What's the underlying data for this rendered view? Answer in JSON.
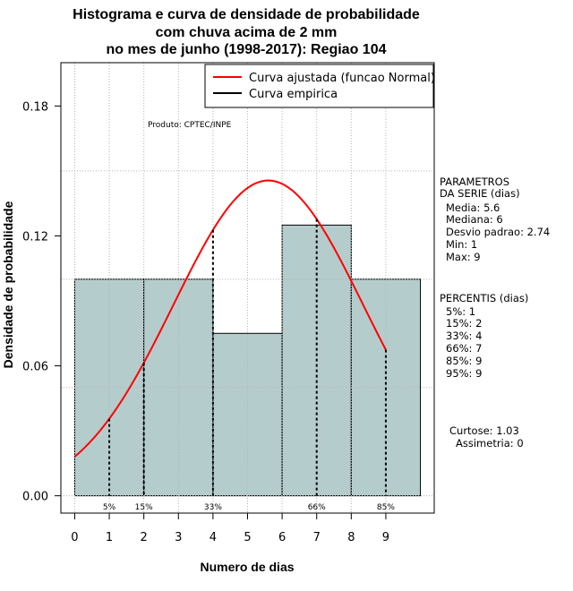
{
  "chart_data": {
    "type": "bar",
    "title": [
      "Histograma e curva de densidade de probabilidade",
      "com chuva acima de 2 mm",
      "no mes de junho (1998-2017): Regiao 104"
    ],
    "xlabel": "Numero de dias",
    "ylabel": "Densidade de probabilidade",
    "xlim": [
      -0.4,
      10.4
    ],
    "ylim": [
      -0.008,
      0.2
    ],
    "x_ticks": [
      0,
      1,
      2,
      3,
      4,
      5,
      6,
      7,
      8,
      9
    ],
    "y_ticks": [
      0.0,
      0.06,
      0.12,
      0.18
    ],
    "y_tick_labels": [
      "0.00",
      "0.06",
      "0.12",
      "0.18"
    ],
    "bins": [
      {
        "from": 0,
        "to": 2,
        "density": 0.1
      },
      {
        "from": 2,
        "to": 4,
        "density": 0.1
      },
      {
        "from": 4,
        "to": 6,
        "density": 0.075
      },
      {
        "from": 6,
        "to": 8,
        "density": 0.125
      },
      {
        "from": 8,
        "to": 10,
        "density": 0.1
      }
    ],
    "normal_curve": {
      "mean": 5.6,
      "sd": 2.74,
      "x_range": [
        0,
        9
      ]
    },
    "percentile_lines": [
      {
        "x": 1,
        "label": "5%"
      },
      {
        "x": 2,
        "label": "15%"
      },
      {
        "x": 4,
        "label": "33%"
      },
      {
        "x": 7,
        "label": "66%"
      },
      {
        "x": 9,
        "label": "85%"
      }
    ],
    "legend": [
      {
        "label": "Curva ajustada (funcao Normal)",
        "color": "#ff0000"
      },
      {
        "label": "Curva empirica",
        "color": "#000000"
      }
    ],
    "source_note": "Produto: CPTEC/INPE",
    "parameters_block": [
      "PARAMETROS",
      "DA SERIE (dias)",
      "Media: 5.6",
      "Mediana: 6",
      "Desvio padrao: 2.74",
      "Min: 1",
      "Max: 9"
    ],
    "percentiles_block": [
      "PERCENTIS (dias)",
      "5%: 1",
      "15%: 2",
      "33%: 4",
      "66%: 7",
      "85%: 9",
      "95%: 9"
    ],
    "shape_block": [
      "Curtose: 1.03",
      "Assimetria: 0"
    ]
  },
  "colors": {
    "bar_fill": "#b5cccc",
    "bar_stroke": "#000000",
    "curve": "#ff0000",
    "grid": "#b3b3b3"
  }
}
